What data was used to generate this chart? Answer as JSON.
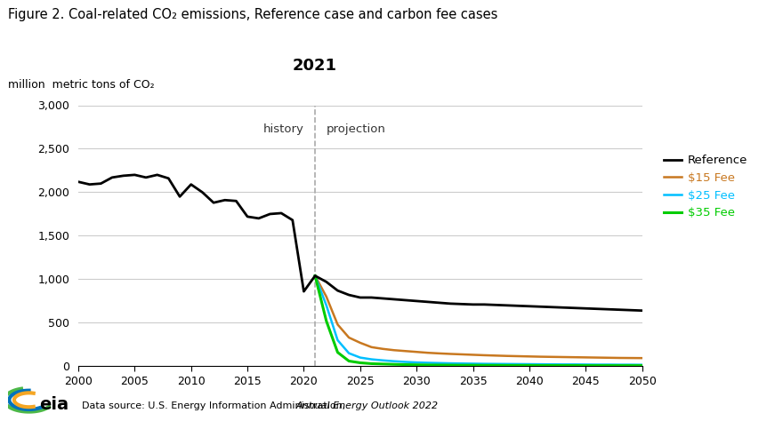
{
  "title": "Figure 2. Coal-related CO₂ emissions, Reference case and carbon fee cases",
  "ylabel": "million  metric tons of CO₂",
  "ylim": [
    0,
    3000
  ],
  "xlim": [
    2000,
    2050
  ],
  "yticks": [
    0,
    500,
    1000,
    1500,
    2000,
    2500,
    3000
  ],
  "xticks": [
    2000,
    2005,
    2010,
    2015,
    2020,
    2025,
    2030,
    2035,
    2040,
    2045,
    2050
  ],
  "divider_year": 2021,
  "history_label": "history",
  "projection_label": "projection",
  "divider_label": "2021",
  "legend_labels": [
    "Reference",
    "$15 Fee",
    "$25 Fee",
    "$35 Fee"
  ],
  "legend_colors": [
    "#000000",
    "#c87820",
    "#00bfff",
    "#00cc00"
  ],
  "line_colors": [
    "#000000",
    "#c87820",
    "#00bfff",
    "#00cc00"
  ],
  "background_color": "#ffffff",
  "datasource": "Data source: U.S. Energy Information Administration, ",
  "datasource_italic": "Annual Energy Outlook 2022",
  "reference_years": [
    2000,
    2001,
    2002,
    2003,
    2004,
    2005,
    2006,
    2007,
    2008,
    2009,
    2010,
    2011,
    2012,
    2013,
    2014,
    2015,
    2016,
    2017,
    2018,
    2019,
    2020,
    2021,
    2022,
    2023,
    2024,
    2025,
    2026,
    2027,
    2028,
    2029,
    2030,
    2031,
    2032,
    2033,
    2034,
    2035,
    2036,
    2037,
    2038,
    2039,
    2040,
    2041,
    2042,
    2043,
    2044,
    2045,
    2046,
    2047,
    2048,
    2049,
    2050
  ],
  "reference_values": [
    2120,
    2090,
    2100,
    2170,
    2190,
    2200,
    2170,
    2200,
    2160,
    1950,
    2090,
    2000,
    1880,
    1910,
    1900,
    1720,
    1700,
    1750,
    1760,
    1680,
    860,
    1040,
    970,
    870,
    820,
    790,
    790,
    780,
    770,
    760,
    750,
    740,
    730,
    720,
    715,
    710,
    710,
    705,
    700,
    695,
    690,
    685,
    680,
    675,
    670,
    665,
    660,
    655,
    650,
    645,
    640
  ],
  "fee15_years": [
    2021,
    2022,
    2023,
    2024,
    2025,
    2026,
    2027,
    2028,
    2029,
    2030,
    2031,
    2032,
    2033,
    2034,
    2035,
    2036,
    2037,
    2038,
    2039,
    2040,
    2041,
    2042,
    2043,
    2044,
    2045,
    2046,
    2047,
    2048,
    2049,
    2050
  ],
  "fee15_values": [
    1040,
    800,
    480,
    330,
    270,
    220,
    200,
    185,
    175,
    165,
    155,
    148,
    142,
    137,
    132,
    127,
    123,
    119,
    116,
    113,
    110,
    108,
    106,
    104,
    102,
    100,
    98,
    96,
    95,
    94
  ],
  "fee25_years": [
    2021,
    2022,
    2023,
    2024,
    2025,
    2026,
    2027,
    2028,
    2029,
    2030,
    2031,
    2032,
    2033,
    2034,
    2035,
    2036,
    2037,
    2038,
    2039,
    2040,
    2041,
    2042,
    2043,
    2044,
    2045,
    2046,
    2047,
    2048,
    2049,
    2050
  ],
  "fee25_values": [
    1040,
    700,
    300,
    150,
    100,
    80,
    68,
    58,
    50,
    44,
    40,
    37,
    34,
    32,
    30,
    28,
    27,
    26,
    25,
    24,
    23,
    22,
    21,
    21,
    20,
    19,
    19,
    18,
    18,
    17
  ],
  "fee35_years": [
    2021,
    2022,
    2023,
    2024,
    2025,
    2026,
    2027,
    2028,
    2029,
    2030,
    2031,
    2032,
    2033,
    2034,
    2035,
    2036,
    2037,
    2038,
    2039,
    2040,
    2041,
    2042,
    2043,
    2044,
    2045,
    2046,
    2047,
    2048,
    2049,
    2050
  ],
  "fee35_values": [
    1040,
    520,
    160,
    60,
    40,
    30,
    26,
    22,
    19,
    17,
    15,
    14,
    13,
    12,
    12,
    11,
    11,
    10,
    10,
    10,
    9,
    9,
    9,
    9,
    8,
    8,
    8,
    8,
    8,
    8
  ]
}
